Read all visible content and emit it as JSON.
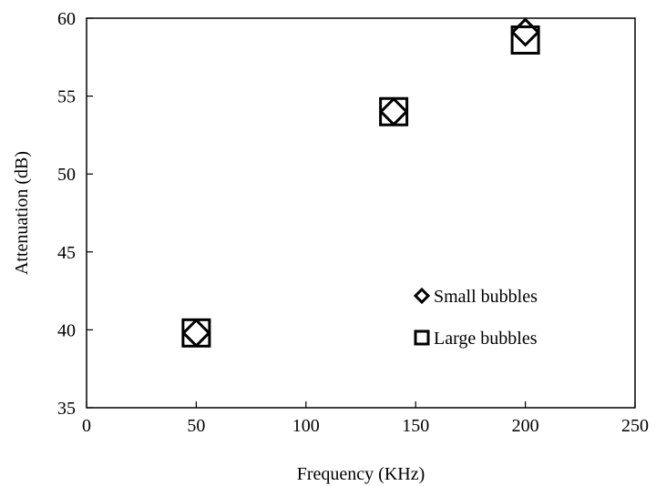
{
  "chart_data": {
    "type": "scatter",
    "title": "",
    "xlabel": "Frequency (KHz)",
    "ylabel": "Attenuation (dB)",
    "xlim": [
      0,
      250
    ],
    "ylim": [
      35,
      60
    ],
    "xticks": [
      0,
      50,
      100,
      150,
      200,
      250
    ],
    "yticks": [
      35,
      40,
      45,
      50,
      55,
      60
    ],
    "xtick_labels": [
      "0",
      "50",
      "100",
      "150",
      "200",
      "250"
    ],
    "ytick_labels": [
      "35",
      "40",
      "45",
      "50",
      "55",
      "60"
    ],
    "grid": false,
    "legend_position": "right",
    "series": [
      {
        "name": "Small bubbles",
        "marker": "diamond",
        "color": "#000000",
        "x": [
          50,
          140,
          200
        ],
        "y": [
          39.8,
          54.0,
          59.1
        ]
      },
      {
        "name": "Large bubbles",
        "marker": "square",
        "color": "#000000",
        "x": [
          50,
          140,
          200
        ],
        "y": [
          39.8,
          54.0,
          58.6
        ]
      }
    ]
  }
}
